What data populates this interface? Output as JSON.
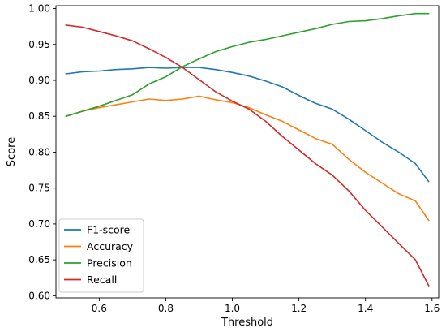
{
  "chart_data": {
    "type": "line",
    "title": "",
    "xlabel": "Threshold",
    "ylabel": "Score",
    "xlim": [
      0.47,
      1.62
    ],
    "ylim": [
      0.597,
      1.004
    ],
    "xticks": [
      0.6,
      0.8,
      1.0,
      1.2,
      1.4,
      1.6
    ],
    "xtick_labels": [
      "0.6",
      "0.8",
      "1.0",
      "1.2",
      "1.4",
      "1.6"
    ],
    "yticks": [
      0.6,
      0.65,
      0.7,
      0.75,
      0.8,
      0.85,
      0.9,
      0.95,
      1.0
    ],
    "ytick_labels": [
      "0.60",
      "0.65",
      "0.70",
      "0.75",
      "0.80",
      "0.85",
      "0.90",
      "0.95",
      "1.00"
    ],
    "grid": false,
    "legend_position": "lower-left",
    "x": [
      0.5,
      0.55,
      0.6,
      0.65,
      0.7,
      0.75,
      0.8,
      0.85,
      0.9,
      0.95,
      1.0,
      1.05,
      1.1,
      1.15,
      1.2,
      1.25,
      1.3,
      1.35,
      1.4,
      1.45,
      1.5,
      1.55,
      1.59
    ],
    "series": [
      {
        "name": "F1-score",
        "color": "#1f77b4",
        "values": [
          0.909,
          0.912,
          0.913,
          0.915,
          0.916,
          0.918,
          0.917,
          0.918,
          0.918,
          0.915,
          0.911,
          0.906,
          0.899,
          0.891,
          0.879,
          0.868,
          0.86,
          0.846,
          0.83,
          0.814,
          0.8,
          0.784,
          0.759
        ]
      },
      {
        "name": "Accuracy",
        "color": "#ff7f0e",
        "values": [
          0.85,
          0.857,
          0.862,
          0.866,
          0.87,
          0.874,
          0.872,
          0.874,
          0.878,
          0.873,
          0.869,
          0.862,
          0.852,
          0.843,
          0.831,
          0.819,
          0.811,
          0.79,
          0.772,
          0.757,
          0.742,
          0.732,
          0.705
        ]
      },
      {
        "name": "Precision",
        "color": "#2ca02c",
        "values": [
          0.85,
          0.857,
          0.864,
          0.872,
          0.88,
          0.895,
          0.905,
          0.919,
          0.93,
          0.94,
          0.947,
          0.953,
          0.957,
          0.962,
          0.967,
          0.972,
          0.978,
          0.982,
          0.983,
          0.986,
          0.99,
          0.993,
          0.993
        ]
      },
      {
        "name": "Recall",
        "color": "#d62728",
        "values": [
          0.977,
          0.974,
          0.968,
          0.962,
          0.955,
          0.944,
          0.932,
          0.918,
          0.901,
          0.884,
          0.871,
          0.86,
          0.843,
          0.822,
          0.803,
          0.784,
          0.768,
          0.746,
          0.719,
          0.696,
          0.673,
          0.65,
          0.614
        ]
      }
    ]
  }
}
